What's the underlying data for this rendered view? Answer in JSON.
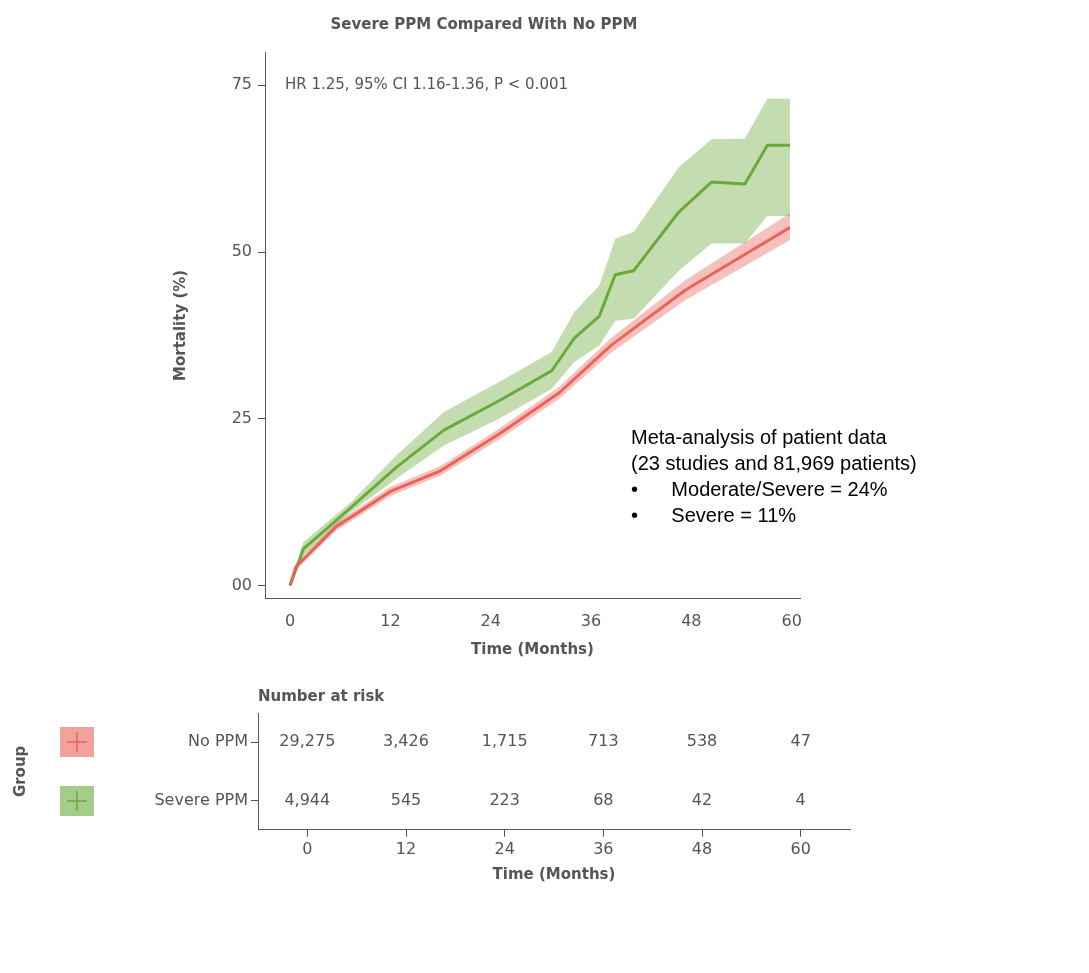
{
  "chart_data": [
    {
      "type": "line",
      "title": "Severe PPM Compared With No PPM",
      "xlabel": "Time (Months)",
      "ylabel": "Mortality (%)",
      "xlim": [
        -3,
        61
      ],
      "xticks": [
        0,
        12,
        24,
        36,
        48,
        60
      ],
      "ylim": [
        -2,
        80
      ],
      "yticks": [
        {
          "value": 0,
          "label": "00"
        },
        25,
        50,
        75
      ],
      "grid": false,
      "legend": false,
      "annotations": [
        "HR 1.25, 95% CI 1.16-1.36, P < 0.001",
        "Meta-analysis of patient data\n(23 studies and 81,969 patients)\n•      Moderate/Severe = 24%\n•      Severe = 11%"
      ],
      "series": [
        {
          "color": "#e8645a",
          "x": [
            0,
            0.7,
            5.5,
            12,
            18,
            25,
            32.2,
            38.4,
            47.3,
            59.8
          ],
          "values": [
            0,
            2.8,
            8.8,
            14.1,
            17.2,
            22.7,
            28.9,
            36,
            44.3,
            53.7
          ],
          "lower": [
            0,
            2.3,
            8.2,
            13.4,
            16.5,
            21.9,
            28,
            34.9,
            42.8,
            51.8
          ],
          "upper": [
            0,
            3.3,
            9.4,
            14.8,
            17.9,
            23.5,
            29.8,
            37.1,
            45.8,
            55.8
          ]
        },
        {
          "color": "#6aaa3a",
          "x": [
            0,
            1.6,
            7.3,
            12.7,
            18.4,
            25,
            31.3,
            34,
            37,
            38.9,
            41.1,
            46.5,
            50.4,
            54.4,
            57.1,
            59.8
          ],
          "values": [
            0,
            5.5,
            11.7,
            17.7,
            23.3,
            27.7,
            32.2,
            37.1,
            40.4,
            46.6,
            47.2,
            56,
            60.5,
            60.2,
            66,
            66
          ],
          "lower": [
            0,
            4.5,
            11,
            16,
            21,
            25,
            29.5,
            33.5,
            36,
            39.7,
            40,
            47.2,
            51.3,
            51.3,
            55.4,
            55.4
          ],
          "upper": [
            0,
            6.5,
            12.5,
            19.5,
            26,
            30.5,
            35,
            41,
            45,
            52,
            53,
            62.7,
            66.9,
            67,
            73,
            73
          ]
        }
      ]
    },
    {
      "type": "heatmap",
      "title": "Number at risk",
      "xlabel": "Time (Months)",
      "ylabel": "Group",
      "categories": [
        "0",
        "12",
        "24",
        "36",
        "48",
        "60"
      ],
      "y_categories": [
        "No PPM",
        "Severe PPM"
      ],
      "cells": [
        [
          29275,
          3426,
          1715,
          713,
          538,
          47
        ],
        [
          4944,
          545,
          223,
          68,
          42,
          4
        ]
      ],
      "cell_labels": [
        [
          "29,275",
          "3,426",
          "1,715",
          "713",
          "538",
          "47"
        ],
        [
          "4,944",
          "545",
          "223",
          "68",
          "42",
          "4"
        ]
      ]
    }
  ]
}
